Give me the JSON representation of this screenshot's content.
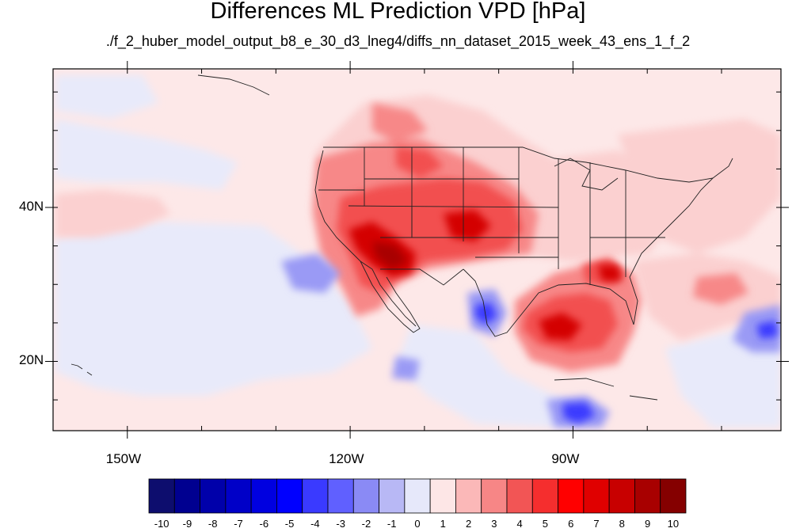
{
  "title": "Differences ML Prediction VPD [hPa]",
  "subtitle": "./f_2_huber_model_output_b8_e_30_d3_lneg4/diffs_nn_dataset_2015_week_43_ens_1_f_2",
  "map": {
    "lon_range": [
      -160,
      -62
    ],
    "lat_range": [
      11,
      58
    ],
    "lon_ticks": [
      {
        "value": -150,
        "label": "150W"
      },
      {
        "value": -120,
        "label": "120W"
      },
      {
        "value": -90,
        "label": "90W"
      }
    ],
    "lat_ticks": [
      {
        "value": 40,
        "label": "40N"
      },
      {
        "value": 20,
        "label": "20N"
      }
    ],
    "background_field": "slightly positive (0 to 1)"
  },
  "colorbar": {
    "bounds": [
      -10,
      -9,
      -8,
      -7,
      -6,
      -5,
      -4,
      -3,
      -2,
      -1,
      0,
      1,
      2,
      3,
      4,
      5,
      6,
      7,
      8,
      9,
      10
    ],
    "labels": [
      "-10",
      "-9",
      "-8",
      "-7",
      "-6",
      "-5",
      "-4",
      "-3",
      "-2",
      "-1",
      "0",
      "1",
      "2",
      "3",
      "4",
      "5",
      "6",
      "7",
      "8",
      "9",
      "10"
    ],
    "colors": [
      "#0d0d6e",
      "#000090",
      "#0000aa",
      "#0000c8",
      "#0000e0",
      "#0000ff",
      "#3a3aff",
      "#6060ff",
      "#8a8af5",
      "#b8b8f5",
      "#e6e8fa",
      "#fde6e6",
      "#fbb8b8",
      "#f78686",
      "#f25555",
      "#f52e2e",
      "#ff0000",
      "#e00000",
      "#c80000",
      "#a80000",
      "#850000"
    ]
  }
}
